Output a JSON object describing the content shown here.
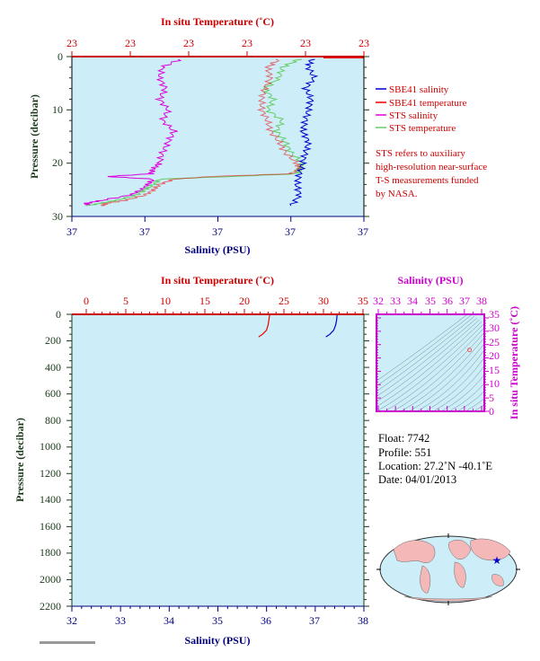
{
  "top_chart": {
    "top_axis_title": "In situ Temperature (˚C)",
    "bottom_axis_title": "Salinity (PSU)",
    "left_axis_title": "Pressure (decibar)",
    "temp_tick_labels": [
      "23",
      "23",
      "23",
      "23",
      "23",
      "23"
    ],
    "sal_tick_labels": [
      "37",
      "37",
      "37",
      "37",
      "37",
      "37"
    ],
    "pressure_tick_labels": [
      "0",
      "10",
      "20",
      "30"
    ]
  },
  "legend": {
    "items": [
      {
        "label": "SBE41 salinity",
        "color": "#0000cc"
      },
      {
        "label": "SBE41 temperature",
        "color": "#ee0000"
      },
      {
        "label": "STS salinity",
        "color": "#dd00dd"
      },
      {
        "label": "STS temperature",
        "color": "#66cc66"
      }
    ],
    "note_lines": [
      "STS refers to auxiliary",
      "high-resolution near-surface",
      "T-S measurements funded",
      "by NASA."
    ]
  },
  "bottom_chart": {
    "top_axis_title": "In situ Temperature (˚C)",
    "bottom_axis_title": "Salinity (PSU)",
    "left_axis_title": "Pressure (decibar)",
    "temp_tick_labels": [
      "0",
      "5",
      "10",
      "15",
      "20",
      "25",
      "30",
      "35"
    ],
    "sal_tick_labels": [
      "32",
      "33",
      "34",
      "35",
      "36",
      "37",
      "38"
    ],
    "pressure_tick_labels": [
      "0",
      "200",
      "400",
      "600",
      "800",
      "1000",
      "1200",
      "1400",
      "1600",
      "1800",
      "2000",
      "2200"
    ]
  },
  "ts_chart": {
    "top_axis_title": "Salinity (PSU)",
    "right_axis_title": "In situ Temperature (˚C)",
    "sal_tick_labels": [
      "32",
      "33",
      "34",
      "35",
      "36",
      "37",
      "38"
    ],
    "temp_tick_labels": [
      "0",
      "5",
      "10",
      "15",
      "20",
      "25",
      "30",
      "35"
    ]
  },
  "info": {
    "float_line": "Float:  7742",
    "profile_line": "Profile:  551",
    "location_line": "Location:  27.2˚N  -40.1˚E",
    "date_line": "Date:  04/01/2013"
  },
  "colors": {
    "plot_bg": "#cdeef8",
    "temperature_axis": "#cc0000",
    "salinity_axis": "#000080",
    "sbe41_salinity": "#0000cc",
    "sbe41_temperature": "#ee0000",
    "sts_salinity": "#dd00dd",
    "sts_temperature": "#66cc66",
    "ts_axis": "#cc00cc"
  },
  "chart_data": [
    {
      "type": "line",
      "title": "",
      "xlabel": "Salinity (PSU)",
      "x2label": "In situ Temperature (˚C)",
      "ylabel": "Pressure (decibar)",
      "ylim": [
        0,
        30
      ],
      "y_inverted": true,
      "series": [
        {
          "name": "STS salinity",
          "axis": "salinity",
          "pressure": [
            0.5,
            2,
            4,
            6,
            8,
            10,
            12,
            14,
            16,
            18,
            20,
            21,
            22,
            22.5,
            23,
            24,
            25,
            26,
            27,
            27.5,
            28
          ],
          "values": [
            0.37,
            0.31,
            0.3,
            0.32,
            0.3,
            0.33,
            0.31,
            0.35,
            0.33,
            0.31,
            0.3,
            0.28,
            0.27,
            0.12,
            0.28,
            0.26,
            0.24,
            0.2,
            0.1,
            0.05,
            0.06
          ]
        },
        {
          "name": "STS temperature",
          "axis": "temperature",
          "pressure": [
            0.5,
            2,
            4,
            6,
            8,
            10,
            12,
            14,
            16,
            18,
            20,
            21,
            22,
            22.5,
            23,
            24,
            25,
            26,
            27,
            27.5,
            28
          ],
          "values": [
            0.78,
            0.72,
            0.71,
            0.66,
            0.69,
            0.67,
            0.72,
            0.7,
            0.73,
            0.75,
            0.79,
            0.78,
            0.77,
            0.55,
            0.3,
            0.28,
            0.25,
            0.22,
            0.15,
            0.1,
            0.05
          ]
        },
        {
          "name": "SBE41 temperature",
          "axis": "temperature",
          "pressure": [
            0.5,
            2,
            4,
            6,
            8,
            10,
            12,
            14,
            16,
            18,
            20,
            21,
            22,
            22.5,
            23,
            24,
            25,
            26,
            27,
            27.5,
            28
          ],
          "values": [
            0.71,
            0.67,
            0.68,
            0.66,
            0.65,
            0.65,
            0.67,
            0.68,
            0.71,
            0.73,
            0.77,
            0.78,
            0.75,
            0.48,
            0.35,
            0.3,
            0.28,
            0.25,
            0.18,
            0.12,
            0.1
          ]
        },
        {
          "name": "SBE41 salinity",
          "axis": "salinity",
          "pressure": [
            0.5,
            2,
            4,
            6,
            8,
            10,
            12,
            14,
            16,
            18,
            20,
            22,
            24,
            26,
            28
          ],
          "values": [
            0.82,
            0.81,
            0.83,
            0.8,
            0.82,
            0.81,
            0.8,
            0.79,
            0.81,
            0.8,
            0.79,
            0.78,
            0.77,
            0.78,
            0.75
          ]
        }
      ]
    },
    {
      "type": "line",
      "title": "",
      "xlabel": "Salinity (PSU)",
      "x2label": "In situ Temperature (˚C)",
      "ylabel": "Pressure (decibar)",
      "xlim": [
        32,
        38
      ],
      "x2lim": [
        0,
        35
      ],
      "ylim": [
        0,
        2200
      ],
      "y_inverted": true,
      "series": [
        {
          "name": "SBE41 temperature",
          "axis": "temperature",
          "pressure": [
            0,
            40,
            80,
            120,
            150,
            170
          ],
          "values": [
            23.2,
            23.1,
            23.0,
            22.8,
            22.3,
            21.8
          ]
        },
        {
          "name": "SBE41 salinity",
          "axis": "salinity",
          "pressure": [
            0,
            40,
            80,
            120,
            150,
            170
          ],
          "values": [
            37.45,
            37.44,
            37.42,
            37.38,
            37.3,
            37.22
          ]
        }
      ]
    },
    {
      "type": "scatter",
      "title": "",
      "xlabel": "Salinity (PSU)",
      "ylabel": "In situ Temperature (˚C)",
      "xlim": [
        32,
        38
      ],
      "ylim": [
        0,
        35
      ],
      "points": [
        {
          "x": 37.3,
          "y": 23.0
        }
      ]
    }
  ]
}
